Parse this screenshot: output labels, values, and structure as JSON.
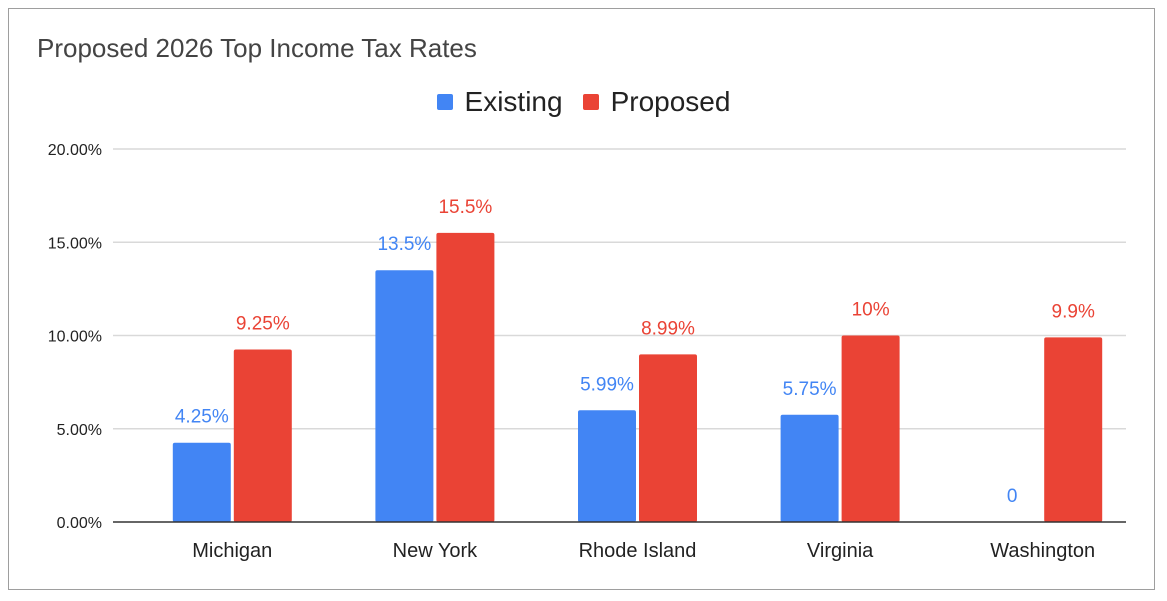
{
  "chart_data": {
    "type": "bar",
    "title": "Proposed 2026 Top Income Tax Rates",
    "xlabel": "",
    "ylabel": "",
    "categories": [
      "Michigan",
      "New York",
      "Rhode Island",
      "Virginia",
      "Washington"
    ],
    "series": [
      {
        "name": "Existing",
        "color": "#4285f4",
        "values": [
          4.25,
          13.5,
          5.99,
          5.75,
          0
        ],
        "labels": [
          "4.25%",
          "13.5%",
          "5.99%",
          "5.75%",
          "0"
        ]
      },
      {
        "name": "Proposed",
        "color": "#ea4335",
        "values": [
          9.25,
          15.5,
          8.99,
          10,
          9.9
        ],
        "labels": [
          "9.25%",
          "15.5%",
          "8.99%",
          "10%",
          "9.9%"
        ]
      }
    ],
    "ylim": [
      0,
      20
    ],
    "yticks": [
      0,
      5,
      10,
      15,
      20
    ],
    "ytick_labels": [
      "0.00%",
      "5.00%",
      "10.00%",
      "15.00%",
      "20.00%"
    ],
    "grid": true,
    "legend_position": "top-center"
  }
}
